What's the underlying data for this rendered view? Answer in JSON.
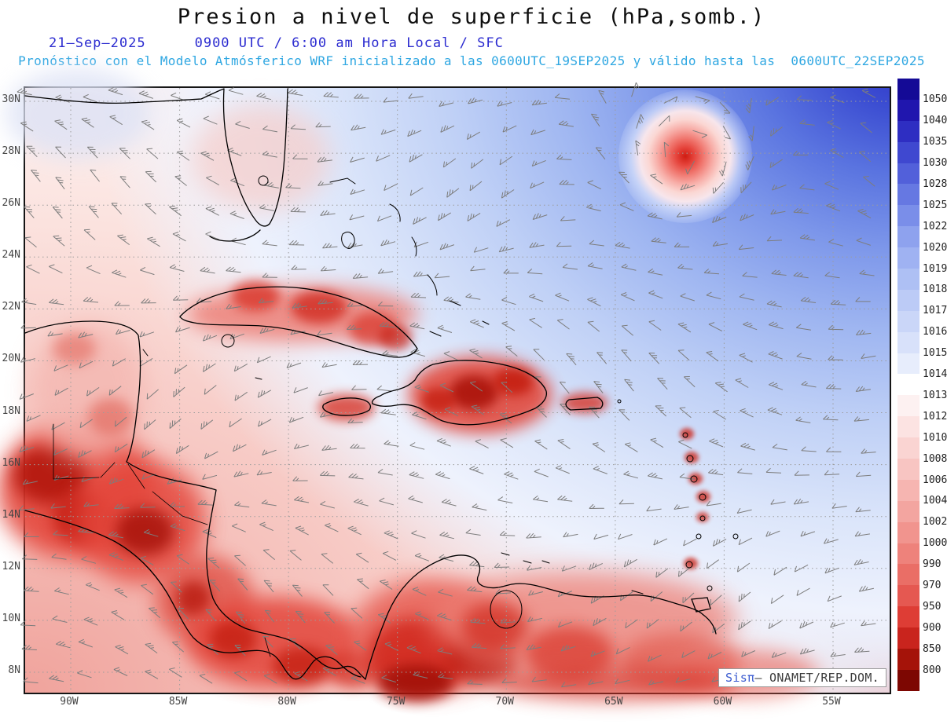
{
  "header": {
    "title": "Presion a nivel de superficie (hPa,somb.)",
    "date": "21–Sep–2025",
    "time_info": "0900 UTC / 6:00 am Hora Local / SFC",
    "forecast_info": "Pronóstico con el Modelo Atmósferico WRF inicializado a las 0600UTC_19SEP2025 y válido hasta las  0600UTC_22SEP2025"
  },
  "credit": {
    "logo": "Sisπ",
    "text": "— ONAMET/REP.DOM."
  },
  "chart_data": {
    "type": "heatmap",
    "title": "Presion a nivel de superficie (hPa,somb.)",
    "units": "hPa",
    "model": "WRF",
    "init_time": "0600UTC_19SEP2025",
    "valid_until": "0600UTC_22SEP2025",
    "valid_time": "21–Sep–2025 0900 UTC / 6:00 am Hora Local / SFC",
    "region": "Caribbean / Gulf of Mexico / Central America",
    "lat_ticks": [
      "30N",
      "28N",
      "26N",
      "24N",
      "22N",
      "20N",
      "18N",
      "16N",
      "14N",
      "12N",
      "10N",
      "8N"
    ],
    "lon_ticks": [
      "90W",
      "85W",
      "80W",
      "75W",
      "70W",
      "65W",
      "60W",
      "55W"
    ],
    "colorbar_levels": [
      1050,
      1040,
      1035,
      1030,
      1028,
      1025,
      1022,
      1020,
      1019,
      1018,
      1017,
      1016,
      1015,
      1014,
      1013,
      1012,
      1010,
      1008,
      1006,
      1004,
      1002,
      1000,
      990,
      970,
      950,
      900,
      850,
      800
    ],
    "colorbar_colors": [
      "#140a96",
      "#2016ae",
      "#2e2ec2",
      "#3f48d0",
      "#5260da",
      "#6678e2",
      "#7a8ee9",
      "#8ea2ee",
      "#9fb2f2",
      "#aec0f4",
      "#bccbf6",
      "#cad6f8",
      "#d8e1fa",
      "#e7edfc",
      "#ffffff",
      "#fdf1f1",
      "#fce3e2",
      "#fad4d2",
      "#f8c5c2",
      "#f6b5b1",
      "#f3a5a0",
      "#f1948e",
      "#ee827b",
      "#ea6e66",
      "#e55851",
      "#de3d35",
      "#c9241d",
      "#a51309",
      "#7d0702"
    ],
    "overlays": [
      "pressure shading",
      "wind barbs",
      "coastlines",
      "dotted lat-lon grid"
    ],
    "features": [
      {
        "name": "tropical cyclone",
        "approx_position": "27.5N 59.5W",
        "description": "closed circulation, red low-pressure core surrounded by white ring inside blue high-pressure field"
      },
      {
        "name": "subtropical high",
        "location": "northeast corner of map",
        "approx_value_hPa": "1022-1050 (dark blue shading)"
      },
      {
        "name": "thermal lows over land",
        "areas": [
          "Central America",
          "Colombia",
          "Venezuela",
          "Cuba",
          "Hispaniola",
          "Jamaica",
          "Puerto Rico",
          "Lesser Antilles"
        ],
        "approx_value_hPa": "below 1008 (red shading)"
      },
      {
        "name": "broad low-pressure area",
        "location": "southwest Caribbean and land areas",
        "shading": "pink to deep red"
      }
    ]
  }
}
